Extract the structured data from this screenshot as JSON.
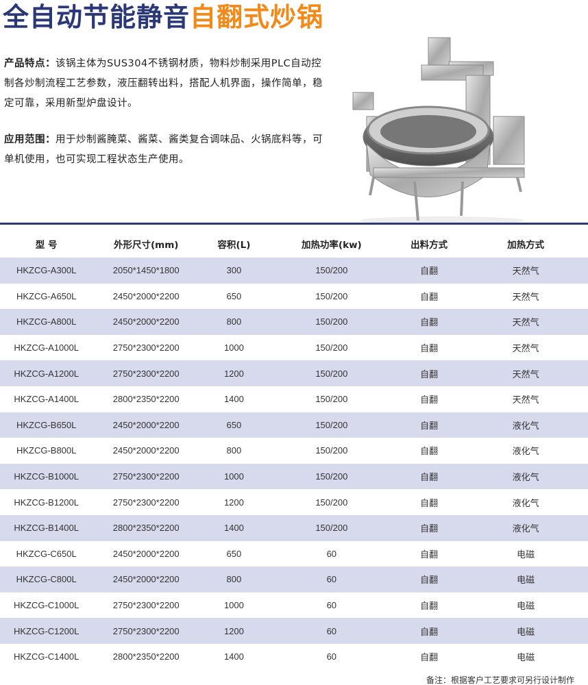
{
  "title": {
    "part1": "全自动节能静音",
    "part2": "自翻式炒锅"
  },
  "features": {
    "label": "产品特点：",
    "text": "该锅主体为SUS304不锈钢材质，物料炒制采用PLC自动控制各炒制流程工艺参数，液压翻转出料，搭配人机界面，操作简单，稳定可靠，采用新型炉盘设计。"
  },
  "applications": {
    "label": "应用范围：",
    "text": "用于炒制酱腌菜、酱菜、酱类复合调味品、火锅底料等，可单机使用，也可实现工程状态生产使用。"
  },
  "colors": {
    "title_primary": "#2b3878",
    "title_accent": "#f28a1a",
    "row_shade": "#d7d9ec"
  },
  "table": {
    "headers": [
      "型 号",
      "外形尺寸(mm)",
      "容积(L)",
      "加热功率(kw)",
      "出料方式",
      "加热方式"
    ],
    "rows": [
      [
        "HKZCG-A300L",
        "2050*1450*1800",
        "300",
        "150/200",
        "自翻",
        "天然气"
      ],
      [
        "HKZCG-A650L",
        "2450*2000*2200",
        "650",
        "150/200",
        "自翻",
        "天然气"
      ],
      [
        "HKZCG-A800L",
        "2450*2000*2200",
        "800",
        "150/200",
        "自翻",
        "天然气"
      ],
      [
        "HKZCG-A1000L",
        "2750*2300*2200",
        "1000",
        "150/200",
        "自翻",
        "天然气"
      ],
      [
        "HKZCG-A1200L",
        "2750*2300*2200",
        "1200",
        "150/200",
        "自翻",
        "天然气"
      ],
      [
        "HKZCG-A1400L",
        "2800*2350*2200",
        "1400",
        "150/200",
        "自翻",
        "天然气"
      ],
      [
        "HKZCG-B650L",
        "2450*2000*2200",
        "650",
        "150/200",
        "自翻",
        "液化气"
      ],
      [
        "HKZCG-B800L",
        "2450*2000*2200",
        "800",
        "150/200",
        "自翻",
        "液化气"
      ],
      [
        "HKZCG-B1000L",
        "2750*2300*2200",
        "1000",
        "150/200",
        "自翻",
        "液化气"
      ],
      [
        "HKZCG-B1200L",
        "2750*2300*2200",
        "1200",
        "150/200",
        "自翻",
        "液化气"
      ],
      [
        "HKZCG-B1400L",
        "2800*2350*2200",
        "1400",
        "150/200",
        "自翻",
        "液化气"
      ],
      [
        "HKZCG-C650L",
        "2450*2000*2200",
        "650",
        "60",
        "自翻",
        "电磁"
      ],
      [
        "HKZCG-C800L",
        "2450*2000*2200",
        "800",
        "60",
        "自翻",
        "电磁"
      ],
      [
        "HKZCG-C1000L",
        "2750*2300*2200",
        "1000",
        "60",
        "自翻",
        "电磁"
      ],
      [
        "HKZCG-C1200L",
        "2750*2300*2200",
        "1200",
        "60",
        "自翻",
        "电磁"
      ],
      [
        "HKZCG-C1400L",
        "2800*2350*2200",
        "1400",
        "60",
        "自翻",
        "电磁"
      ]
    ]
  },
  "note": "备注：根据客户工艺要求可另行设计制作"
}
